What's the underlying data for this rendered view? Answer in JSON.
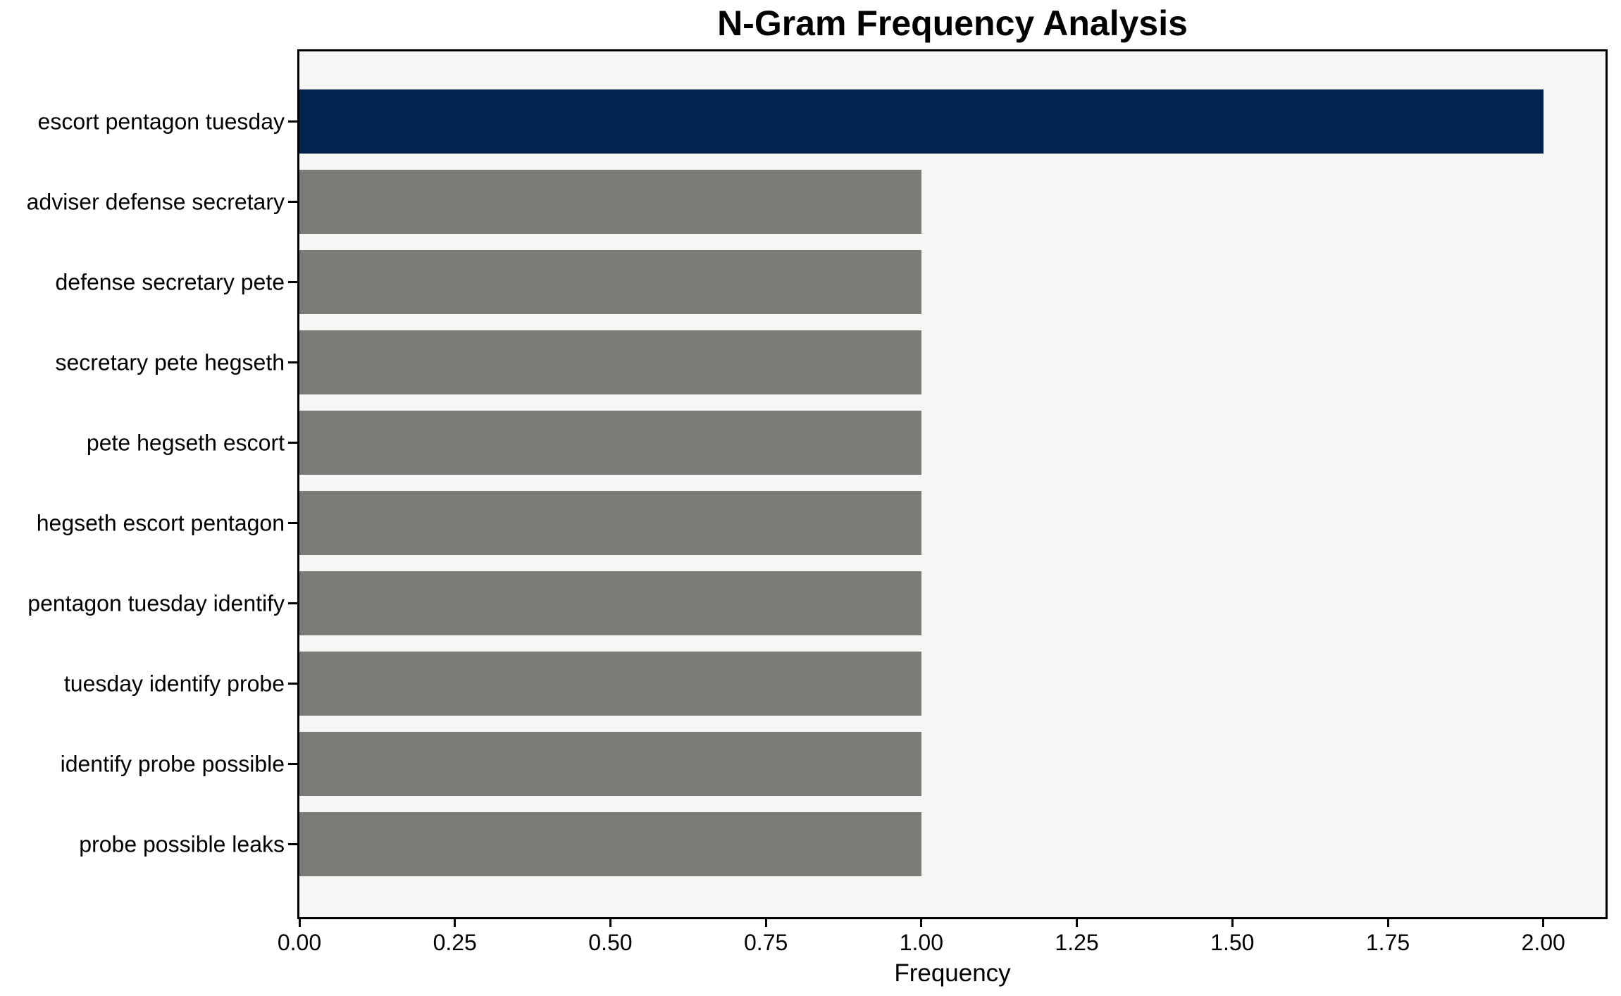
{
  "chart_data": {
    "type": "bar",
    "orientation": "horizontal",
    "title": "N-Gram Frequency Analysis",
    "xlabel": "Frequency",
    "ylabel": "",
    "categories": [
      "escort pentagon tuesday",
      "adviser defense secretary",
      "defense secretary pete",
      "secretary pete hegseth",
      "pete hegseth escort",
      "hegseth escort pentagon",
      "pentagon tuesday identify",
      "tuesday identify probe",
      "identify probe possible",
      "probe possible leaks"
    ],
    "values": [
      2,
      1,
      1,
      1,
      1,
      1,
      1,
      1,
      1,
      1
    ],
    "xlim": [
      0,
      2.1
    ],
    "xticks": [
      0,
      0.25,
      0.5,
      0.75,
      1.0,
      1.25,
      1.5,
      1.75,
      2.0
    ],
    "xtick_labels": [
      "0.00",
      "0.25",
      "0.50",
      "0.75",
      "1.00",
      "1.25",
      "1.50",
      "1.75",
      "2.00"
    ],
    "grid": false,
    "legend": false,
    "highlight_index": 0,
    "colors": {
      "highlight": "#02234d",
      "default": "#7c7b78",
      "plot_background": "#f6f6f5",
      "figure_background": "#ffffff",
      "spine": "#000000",
      "text": "#000000"
    }
  }
}
